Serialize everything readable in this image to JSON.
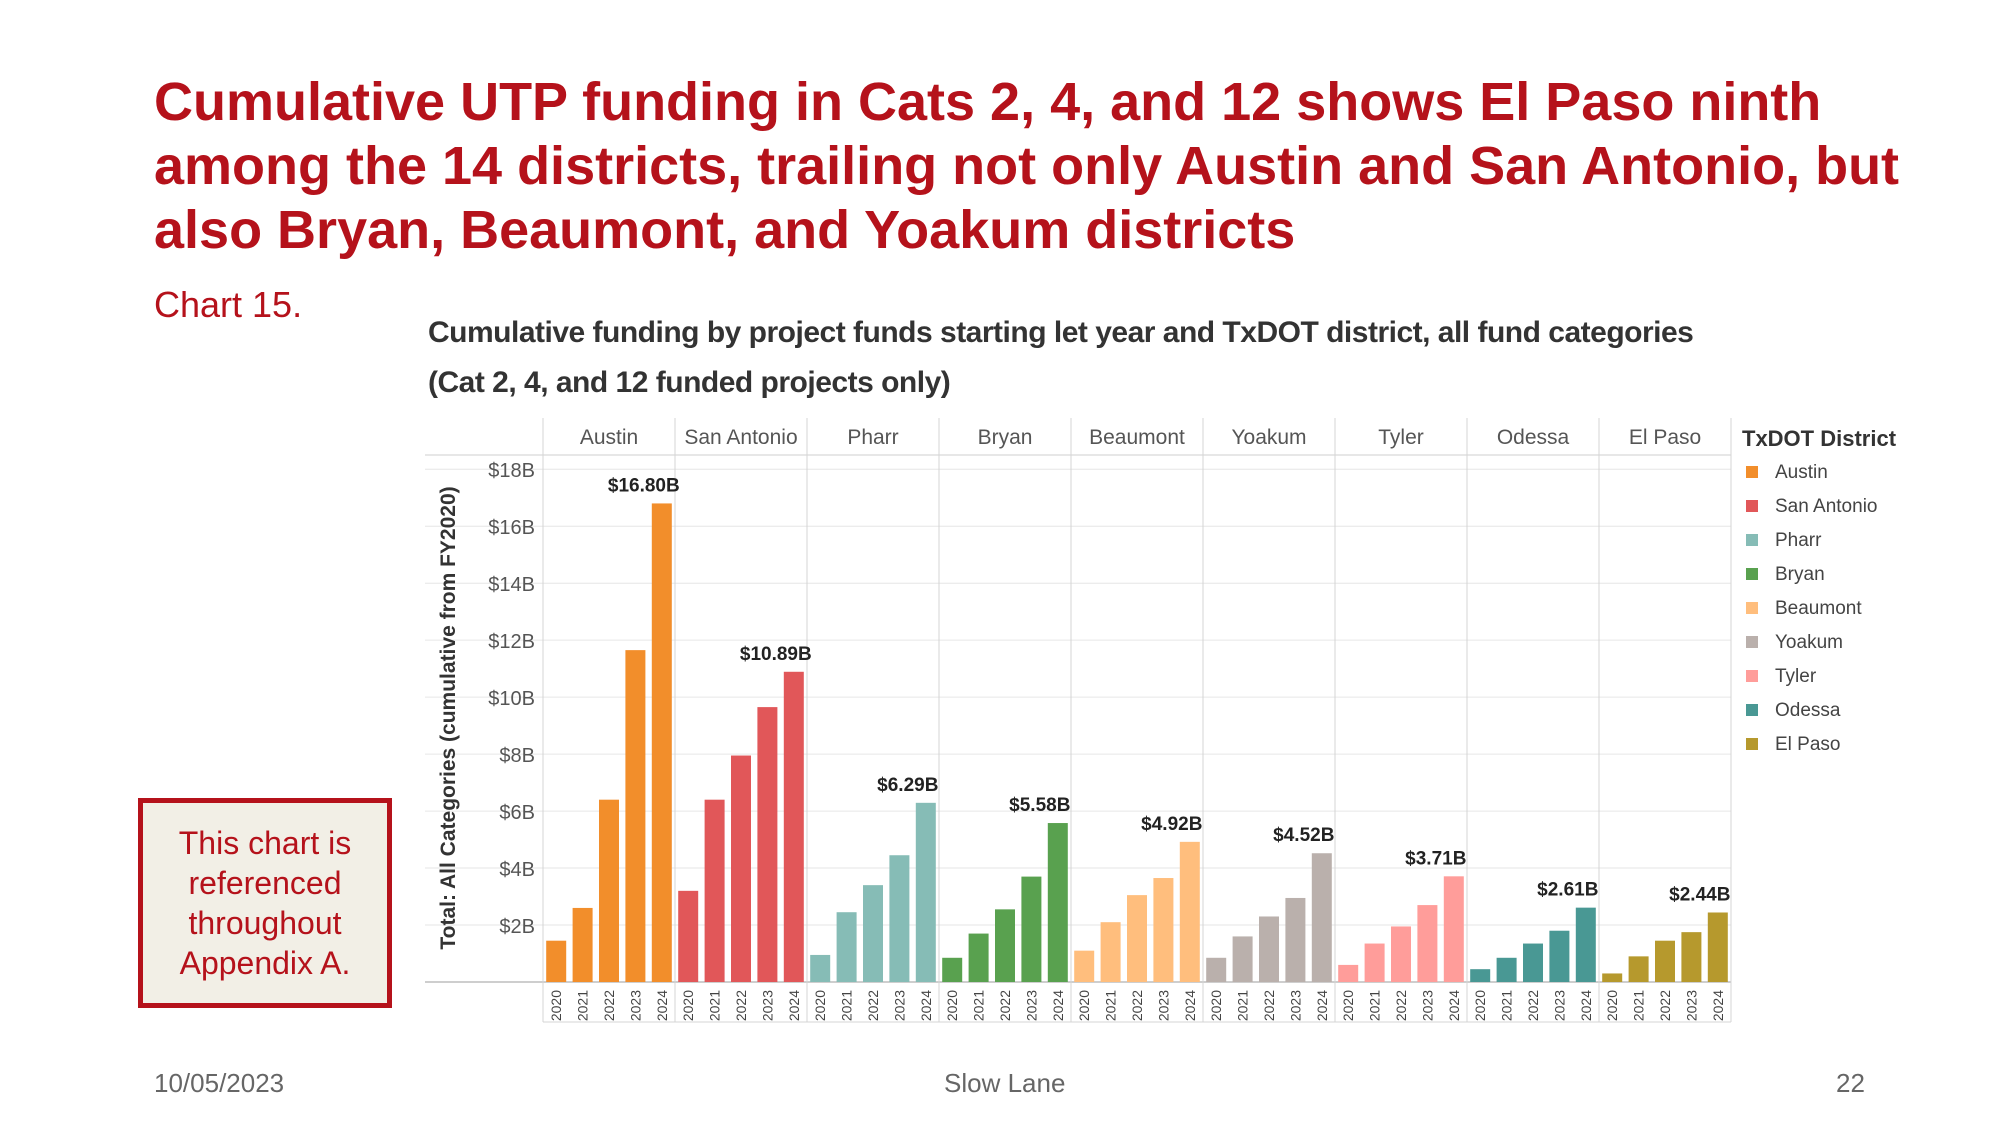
{
  "slide": {
    "title": "Cumulative UTP funding in Cats 2, 4, and 12 shows El Paso ninth among the 14 districts, trailing not only Austin and San Antonio, but also Bryan, Beaumont, and Yoakum districts",
    "subtitle": "Chart 15.",
    "note": "This chart is referenced throughout Appendix A.",
    "footer_date": "10/05/2023",
    "footer_center": "Slow Lane",
    "page_number": "22"
  },
  "chart_data": {
    "type": "bar",
    "title": "Cumulative funding by project funds starting let year and TxDOT district, all fund categories (Cat 2, 4, and 12 funded projects only)",
    "ylabel": "Total: All Categories (cumulative from FY2020)",
    "xlabel": "",
    "ylim": [
      0,
      18.5
    ],
    "yticks": [
      2,
      4,
      6,
      8,
      10,
      12,
      14,
      16,
      18
    ],
    "ytick_labels": [
      "$2B",
      "$4B",
      "$6B",
      "$8B",
      "$10B",
      "$12B",
      "$14B",
      "$16B",
      "$18B"
    ],
    "years": [
      "2020",
      "2021",
      "2022",
      "2023",
      "2024"
    ],
    "legend_title": "TxDOT District",
    "legend_position": "right",
    "series": [
      {
        "name": "Austin",
        "color": "#f28e2b",
        "values": [
          1.45,
          2.6,
          6.4,
          11.65,
          16.8
        ],
        "label": "$16.80B"
      },
      {
        "name": "San Antonio",
        "color": "#e15759",
        "values": [
          3.2,
          6.4,
          7.95,
          9.65,
          10.89
        ],
        "label": "$10.89B"
      },
      {
        "name": "Pharr",
        "color": "#86bcb6",
        "values": [
          0.95,
          2.45,
          3.4,
          4.45,
          6.29
        ],
        "label": "$6.29B"
      },
      {
        "name": "Bryan",
        "color": "#59a14f",
        "values": [
          0.85,
          1.7,
          2.55,
          3.7,
          5.58
        ],
        "label": "$5.58B"
      },
      {
        "name": "Beaumont",
        "color": "#ffbe7d",
        "values": [
          1.1,
          2.1,
          3.05,
          3.65,
          4.92
        ],
        "label": "$4.92B"
      },
      {
        "name": "Yoakum",
        "color": "#bab0ac",
        "values": [
          0.85,
          1.6,
          2.3,
          2.95,
          4.52
        ],
        "label": "$4.52B"
      },
      {
        "name": "Tyler",
        "color": "#ff9d9a",
        "values": [
          0.6,
          1.35,
          1.95,
          2.7,
          3.71
        ],
        "label": "$3.71B"
      },
      {
        "name": "Odessa",
        "color": "#499894",
        "values": [
          0.45,
          0.85,
          1.35,
          1.8,
          2.61
        ],
        "label": "$2.61B"
      },
      {
        "name": "El Paso",
        "color": "#b6992d",
        "values": [
          0.3,
          0.9,
          1.45,
          1.75,
          2.44
        ],
        "label": "$2.44B"
      }
    ]
  }
}
